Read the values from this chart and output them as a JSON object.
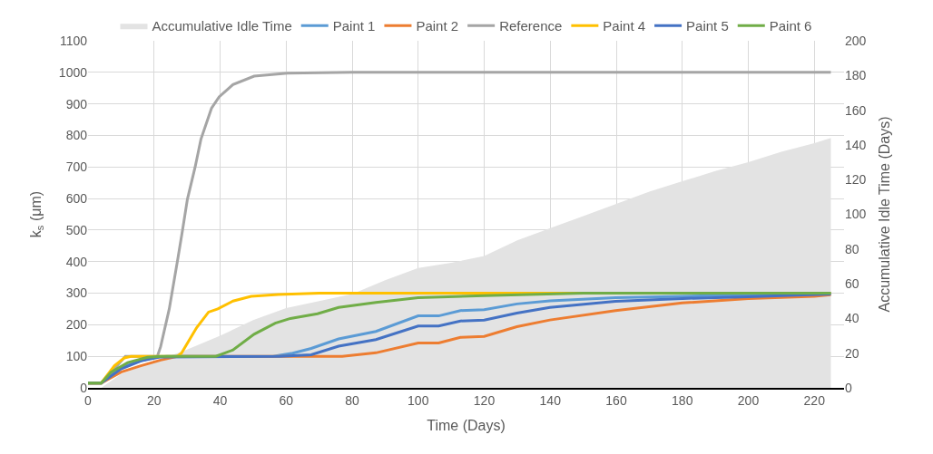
{
  "chart_data": {
    "type": "line",
    "xlabel": "Time (Days)",
    "ylabel": "k$_{s}$ (μm)",
    "y2label": "Accumulative Idle Time (Days)",
    "xlim": [
      0,
      229
    ],
    "xticks": [
      0,
      20,
      40,
      60,
      80,
      100,
      120,
      140,
      160,
      180,
      200,
      220
    ],
    "ylim": [
      0,
      1100
    ],
    "yticks": [
      0,
      100,
      200,
      300,
      400,
      500,
      600,
      700,
      800,
      900,
      1000,
      1100
    ],
    "y2lim": [
      0,
      200
    ],
    "y2ticks": [
      0,
      20,
      40,
      60,
      80,
      100,
      120,
      140,
      160,
      180,
      200
    ],
    "grid": true,
    "legend": "top",
    "marker": "none",
    "line_style": "solid",
    "series": [
      {
        "name": "Accumulative Idle Time",
        "type": "area",
        "axis": "y2",
        "color": "#e3e3e3",
        "x": [
          0,
          4,
          10,
          20,
          30,
          40,
          50,
          60,
          70,
          80,
          90,
          100,
          110,
          120,
          130,
          140,
          150,
          160,
          170,
          180,
          190,
          200,
          210,
          220,
          225
        ],
        "values": [
          0,
          0,
          8,
          15,
          22,
          30,
          39,
          46,
          50,
          54,
          62,
          69,
          72,
          76,
          85,
          92,
          99,
          106,
          113,
          119,
          125,
          130,
          136,
          141,
          144
        ]
      },
      {
        "name": "Paint 1",
        "color": "#5b9bd5",
        "x": [
          0,
          4,
          8,
          14,
          20,
          24,
          56,
          62,
          67.6,
          75.9,
          87.2,
          100,
          106.2,
          112.8,
          120,
          129.9,
          139.9,
          159.8,
          180,
          200,
          225
        ],
        "values": [
          15,
          15,
          55,
          80,
          97,
          100,
          100,
          110,
          125,
          155,
          179,
          228,
          228,
          245,
          248,
          266,
          276,
          286,
          290,
          295,
          300
        ]
      },
      {
        "name": "Paint 2",
        "color": "#ed7d31",
        "x": [
          0,
          4,
          10,
          16,
          22,
          27,
          77,
          87.2,
          100,
          106.2,
          112.8,
          120,
          129.9,
          139.9,
          159.8,
          180,
          200,
          220,
          225
        ],
        "values": [
          15,
          15,
          50,
          70,
          88,
          100,
          100,
          111,
          142,
          142,
          160,
          163,
          194,
          215,
          245,
          269,
          283,
          290,
          295
        ]
      },
      {
        "name": "Reference",
        "color": "#a5a5a5",
        "x": [
          0,
          4,
          8,
          11.3,
          21,
          22,
          24.6,
          27.2,
          28.6,
          30.1,
          32.4,
          34.2,
          37.4,
          39.7,
          43.9,
          50.3,
          60.4,
          80,
          225
        ],
        "values": [
          15,
          15,
          60,
          100,
          100,
          131,
          250,
          409,
          498,
          598,
          698,
          788,
          886,
          922,
          961,
          988,
          997,
          1000,
          1000
        ]
      },
      {
        "name": "Paint 4",
        "color": "#ffc000",
        "x": [
          0,
          4,
          8,
          11,
          13,
          27,
          28.3,
          32.9,
          36.5,
          39.3,
          43.9,
          49.4,
          57.6,
          70,
          225
        ],
        "values": [
          15,
          15,
          70,
          95,
          100,
          100,
          110,
          191,
          240,
          250,
          275,
          290,
          296,
          300,
          300
        ]
      },
      {
        "name": "Paint 5",
        "color": "#4472c4",
        "x": [
          0,
          4,
          10,
          16,
          22,
          58,
          67.6,
          75.9,
          87.2,
          100,
          106.2,
          112.8,
          120,
          129.9,
          139.9,
          159.8,
          180,
          200,
          225
        ],
        "values": [
          15,
          15,
          60,
          85,
          98,
          100,
          105,
          132,
          153,
          196,
          196,
          212,
          215,
          237,
          255,
          274,
          283,
          289,
          297
        ]
      },
      {
        "name": "Paint 6",
        "color": "#70ad47",
        "x": [
          0,
          4,
          7,
          12,
          18,
          22,
          38.7,
          43.9,
          50.3,
          56.7,
          61.3,
          69.5,
          75.9,
          87.2,
          100,
          120,
          150,
          225
        ],
        "values": [
          15,
          15,
          50,
          80,
          97,
          100,
          100,
          120,
          170,
          205,
          220,
          235,
          255,
          271,
          286,
          292,
          300,
          300
        ]
      }
    ]
  }
}
